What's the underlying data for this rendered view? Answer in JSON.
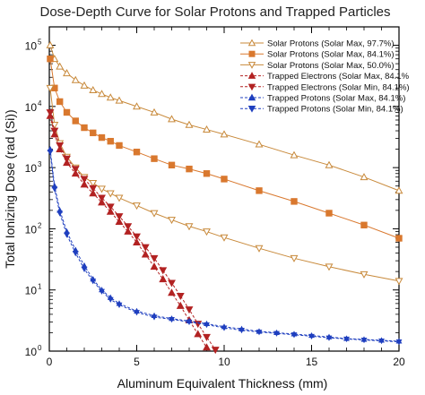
{
  "chart_data": {
    "type": "line",
    "title": "Dose-Depth Curve for Solar Protons and Trapped Particles",
    "xlabel": "Aluminum Equivalent Thickness (mm)",
    "ylabel": "Total Ionizing Dose (rad (Si))",
    "xlim": [
      0,
      20
    ],
    "ylim": [
      1,
      200000
    ],
    "yscale": "log",
    "x_ticks": [
      0,
      5,
      10,
      15,
      20
    ],
    "x_tick_labels": [
      "0",
      "5",
      "10",
      "15",
      "20"
    ],
    "y_ticks": [
      1,
      10,
      100,
      1000,
      10000,
      100000
    ],
    "y_tick_labels": [
      "10",
      "10",
      "10",
      "10",
      "10",
      "10"
    ],
    "y_tick_exponents": [
      "0",
      "1",
      "2",
      "3",
      "4",
      "5"
    ],
    "legend_position": "top-right",
    "grid": false,
    "series": [
      {
        "name": "Solar Protons (Solar Max, 97.7%)",
        "color": "#C8893A",
        "marker": "triangle-up-open",
        "dashed": false,
        "x": [
          0.05,
          0.3,
          0.6,
          1,
          1.5,
          2,
          2.5,
          3,
          3.5,
          4,
          5,
          6,
          7,
          8,
          9,
          10,
          12,
          14,
          16,
          18,
          20
        ],
        "y": [
          100000,
          60000,
          45000,
          35000,
          27000,
          22000,
          18500,
          16000,
          14000,
          12500,
          10000,
          8000,
          6200,
          5000,
          4200,
          3500,
          2400,
          1600,
          1100,
          700,
          420
        ]
      },
      {
        "name": "Solar Protons (Solar Max, 84.1%)",
        "color": "#D9782E",
        "marker": "square",
        "dashed": false,
        "x": [
          0.05,
          0.3,
          0.6,
          1,
          1.5,
          2,
          2.5,
          3,
          3.5,
          4,
          5,
          6,
          7,
          8,
          9,
          10,
          12,
          14,
          16,
          18,
          20
        ],
        "y": [
          60000,
          20000,
          12000,
          8000,
          5800,
          4500,
          3700,
          3100,
          2700,
          2300,
          1800,
          1400,
          1100,
          950,
          800,
          650,
          420,
          280,
          180,
          115,
          70
        ]
      },
      {
        "name": "Solar Protons (Solar Max, 50.0%)",
        "color": "#C8893A",
        "marker": "triangle-down-open",
        "dashed": false,
        "x": [
          0.05,
          0.3,
          0.6,
          1,
          1.5,
          2,
          2.5,
          3,
          3.5,
          4,
          5,
          6,
          7,
          8,
          9,
          10,
          12,
          14,
          16,
          18,
          20
        ],
        "y": [
          20000,
          5000,
          2500,
          1500,
          1000,
          700,
          560,
          450,
          380,
          320,
          240,
          180,
          140,
          110,
          90,
          72,
          48,
          33,
          24,
          18,
          14
        ]
      },
      {
        "name": "Trapped Electrons (Solar Max, 84.1%",
        "color": "#B22222",
        "marker": "triangle-up",
        "dashed": true,
        "x": [
          0.05,
          0.3,
          0.6,
          1,
          1.5,
          2,
          2.5,
          3,
          3.5,
          4,
          4.5,
          5,
          5.5,
          6,
          6.5,
          7,
          7.5,
          8,
          8.5,
          9
        ],
        "y": [
          7000,
          3500,
          2000,
          1200,
          800,
          530,
          380,
          270,
          190,
          130,
          90,
          60,
          38,
          24,
          15,
          9,
          5.5,
          3.2,
          1.9,
          1.15
        ]
      },
      {
        "name": "Trapped Electrons (Solar Min, 84.1%)",
        "color": "#B22222",
        "marker": "triangle-down",
        "dashed": true,
        "x": [
          0.05,
          0.3,
          0.6,
          1,
          1.5,
          2,
          2.5,
          3,
          3.5,
          4,
          4.5,
          5,
          5.5,
          6,
          6.5,
          7,
          7.5,
          8,
          8.5,
          9,
          9.5
        ],
        "y": [
          8000,
          4000,
          2300,
          1400,
          950,
          650,
          460,
          320,
          230,
          160,
          110,
          75,
          50,
          33,
          21,
          13,
          8,
          4.8,
          2.8,
          1.7,
          1.05
        ]
      },
      {
        "name": "Trapped Protons (Solar Max, 84.1%)",
        "color": "#1F3FBF",
        "marker": "triangle-up",
        "dashed": true,
        "x": [
          0.05,
          0.3,
          0.6,
          1,
          1.5,
          2,
          2.5,
          3,
          3.5,
          4,
          5,
          6,
          7,
          8,
          9,
          10,
          11,
          12,
          13,
          14,
          15,
          16,
          17,
          18,
          19,
          20
        ],
        "y": [
          2000,
          500,
          200,
          90,
          45,
          25,
          15,
          10,
          7.5,
          6,
          4.5,
          3.8,
          3.4,
          3.1,
          2.8,
          2.5,
          2.3,
          2.1,
          2.0,
          1.9,
          1.8,
          1.7,
          1.6,
          1.55,
          1.5,
          1.45
        ]
      },
      {
        "name": "Trapped Protons (Solar Min, 84.1%)",
        "color": "#1F3FBF",
        "marker": "triangle-down",
        "dashed": true,
        "x": [
          0.05,
          0.3,
          0.6,
          1,
          1.5,
          2,
          2.5,
          3,
          3.5,
          4,
          5,
          6,
          7,
          8,
          9,
          10,
          11,
          12,
          13,
          14,
          15,
          16,
          17,
          18,
          19,
          20
        ],
        "y": [
          1800,
          450,
          180,
          80,
          40,
          22,
          14,
          9.5,
          7,
          5.7,
          4.3,
          3.6,
          3.3,
          3.0,
          2.7,
          2.4,
          2.2,
          2.05,
          1.95,
          1.85,
          1.75,
          1.65,
          1.58,
          1.52,
          1.47,
          1.42
        ]
      }
    ]
  }
}
